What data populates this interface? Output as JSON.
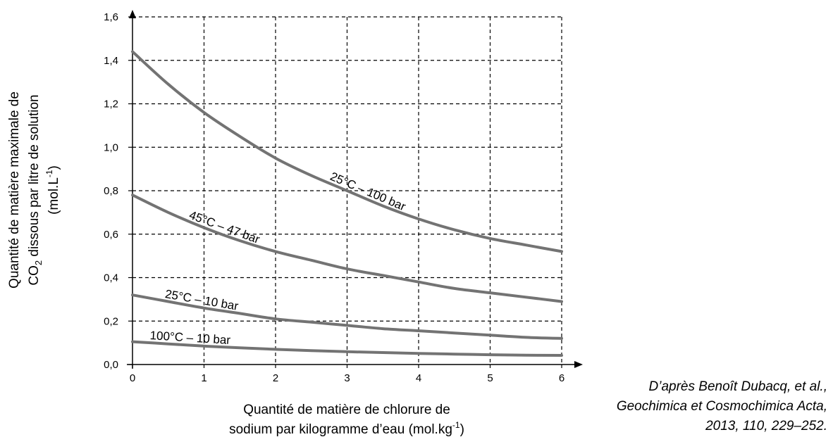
{
  "chart_data": {
    "type": "line",
    "xlabel_line1": "Quantité de matière de chlorure de",
    "xlabel_line2_main": "sodium par kilogramme d’eau (mol.kg",
    "xlabel_line2_sup": "-1",
    "xlabel_line2_end": ")",
    "ylabel_line1": "Quantité de matière maximale de",
    "ylabel_line2_pre": "CO",
    "ylabel_line2_sub": "2",
    "ylabel_line2_post": " dissous par litre de solution",
    "ylabel_line3_main": "(mol.L",
    "ylabel_line3_sup": "-1",
    "ylabel_line3_end": ")",
    "xlim": [
      0,
      6
    ],
    "ylim": [
      0,
      1.6
    ],
    "x_ticks": [
      0,
      1,
      2,
      3,
      4,
      5,
      6
    ],
    "x_tick_labels": [
      "0",
      "1",
      "2",
      "3",
      "4",
      "5",
      "6"
    ],
    "y_ticks": [
      0,
      0.2,
      0.4,
      0.6,
      0.8,
      1.0,
      1.2,
      1.4,
      1.6
    ],
    "y_tick_labels": [
      "0,0",
      "0,2",
      "0,4",
      "0,6",
      "0,8",
      "1,0",
      "1,2",
      "1,4",
      "1,6"
    ],
    "grid": true,
    "series": [
      {
        "name": "25°C – 100 bar",
        "x": [
          0,
          0.5,
          1,
          1.5,
          2,
          2.5,
          3,
          3.5,
          4,
          4.5,
          5,
          5.5,
          6
        ],
        "y": [
          1.44,
          1.29,
          1.16,
          1.05,
          0.95,
          0.87,
          0.8,
          0.73,
          0.67,
          0.62,
          0.58,
          0.55,
          0.52
        ],
        "label_at": 3.25
      },
      {
        "name": "45°C – 47 bar",
        "x": [
          0,
          0.5,
          1,
          1.5,
          2,
          2.5,
          3,
          3.5,
          4,
          4.5,
          5,
          5.5,
          6
        ],
        "y": [
          0.78,
          0.7,
          0.63,
          0.57,
          0.52,
          0.48,
          0.44,
          0.41,
          0.38,
          0.35,
          0.33,
          0.31,
          0.29
        ],
        "label_at": 1.25
      },
      {
        "name": "25°C – 10 bar",
        "x": [
          0,
          0.5,
          1,
          1.5,
          2,
          2.5,
          3,
          3.5,
          4,
          4.5,
          5,
          5.5,
          6
        ],
        "y": [
          0.32,
          0.29,
          0.26,
          0.235,
          0.21,
          0.195,
          0.18,
          0.165,
          0.155,
          0.145,
          0.135,
          0.125,
          0.12
        ],
        "label_at": 0.95
      },
      {
        "name": "100°C – 10 bar",
        "x": [
          0,
          0.5,
          1,
          1.5,
          2,
          2.5,
          3,
          3.5,
          4,
          4.5,
          5,
          5.5,
          6
        ],
        "y": [
          0.105,
          0.095,
          0.085,
          0.077,
          0.07,
          0.064,
          0.059,
          0.055,
          0.051,
          0.048,
          0.045,
          0.043,
          0.042
        ],
        "label_at": 0.8
      }
    ],
    "source_lines": [
      "D’après Benoît Dubacq, et al.,",
      "Geochimica et Cosmochimica Acta,",
      "2013, 110, 229–252."
    ],
    "colors": {
      "curve": "#737373",
      "grid": "#000000",
      "axis": "#000000"
    }
  }
}
